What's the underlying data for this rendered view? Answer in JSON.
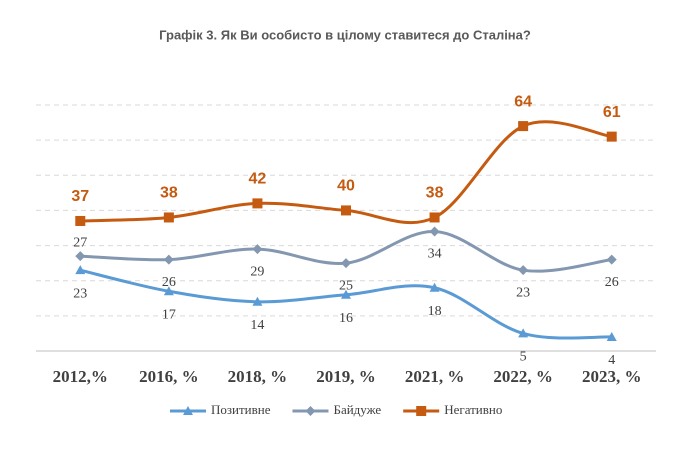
{
  "chart_data": {
    "type": "line",
    "title": "Графік 3. Як Ви особисто в цілому ставитеся до Сталіна?",
    "categories": [
      "2012,%",
      "2016, %",
      "2018, %",
      "2019, %",
      "2021, %",
      "2022, %",
      "2023, %"
    ],
    "series": [
      {
        "name": "Позитивне",
        "color": "#5b9bd5",
        "values": [
          23,
          17,
          14,
          16,
          18,
          5,
          4
        ]
      },
      {
        "name": "Байдуже",
        "color": "#8497b0",
        "values": [
          27,
          26,
          29,
          25,
          34,
          23,
          26
        ]
      },
      {
        "name": "Негативно",
        "color": "#c55a11",
        "values": [
          37,
          38,
          42,
          40,
          38,
          64,
          61
        ]
      }
    ],
    "ylim": [
      0,
      70
    ],
    "yticks": [
      0,
      10,
      20,
      30,
      40,
      50,
      60,
      70
    ],
    "grid": true,
    "legend": "bottom"
  }
}
